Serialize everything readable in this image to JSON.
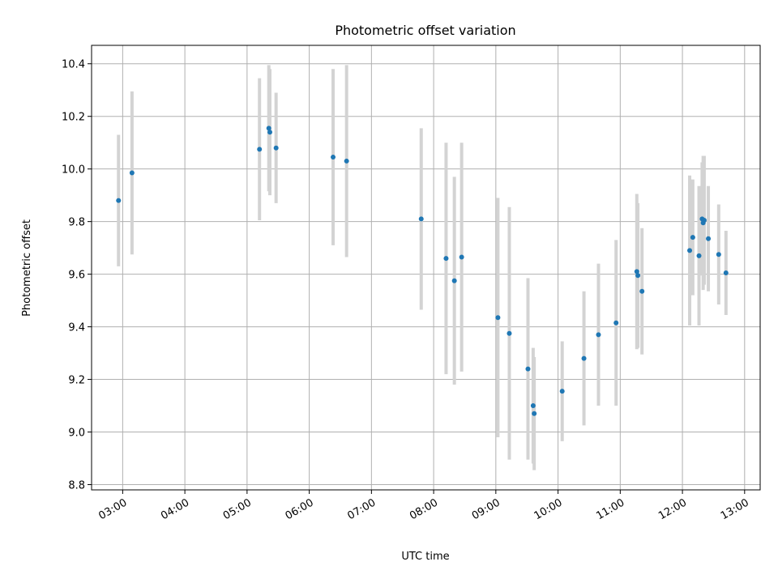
{
  "chart_data": {
    "type": "scatter",
    "title": "Photometric offset variation",
    "xlabel": "UTC time",
    "ylabel": "Photometric offset",
    "xlim": [
      "02:30",
      "13:15"
    ],
    "ylim": [
      8.78,
      10.47
    ],
    "x_ticks": [
      "03:00",
      "04:00",
      "05:00",
      "06:00",
      "07:00",
      "08:00",
      "09:00",
      "10:00",
      "11:00",
      "12:00",
      "13:00"
    ],
    "y_ticks": [
      8.8,
      9.0,
      9.2,
      9.4,
      9.6,
      9.8,
      10.0,
      10.2,
      10.4
    ],
    "grid": true,
    "marker_color": "#1f77b4",
    "errorbar_color": "#d3d3d3",
    "points": [
      {
        "x": "02:56",
        "y": 9.88,
        "yerr": 0.25
      },
      {
        "x": "03:09",
        "y": 9.985,
        "yerr": 0.31
      },
      {
        "x": "05:12",
        "y": 10.075,
        "yerr": 0.27
      },
      {
        "x": "05:21",
        "y": 10.155,
        "yerr": 0.24
      },
      {
        "x": "05:22",
        "y": 10.14,
        "yerr": 0.24
      },
      {
        "x": "05:28",
        "y": 10.08,
        "yerr": 0.21
      },
      {
        "x": "06:23",
        "y": 10.045,
        "yerr": 0.335
      },
      {
        "x": "06:36",
        "y": 10.03,
        "yerr": 0.365
      },
      {
        "x": "07:48",
        "y": 9.81,
        "yerr": 0.345
      },
      {
        "x": "08:12",
        "y": 9.66,
        "yerr": 0.44
      },
      {
        "x": "08:20",
        "y": 9.575,
        "yerr": 0.395
      },
      {
        "x": "08:27",
        "y": 9.665,
        "yerr": 0.435
      },
      {
        "x": "09:02",
        "y": 9.435,
        "yerr": 0.455
      },
      {
        "x": "09:13",
        "y": 9.375,
        "yerr": 0.48
      },
      {
        "x": "09:31",
        "y": 9.24,
        "yerr": 0.345
      },
      {
        "x": "09:36",
        "y": 9.1,
        "yerr": 0.22
      },
      {
        "x": "09:37",
        "y": 9.07,
        "yerr": 0.215
      },
      {
        "x": "10:04",
        "y": 9.155,
        "yerr": 0.19
      },
      {
        "x": "10:25",
        "y": 9.28,
        "yerr": 0.255
      },
      {
        "x": "10:39",
        "y": 9.37,
        "yerr": 0.27
      },
      {
        "x": "10:56",
        "y": 9.415,
        "yerr": 0.315
      },
      {
        "x": "11:16",
        "y": 9.61,
        "yerr": 0.295
      },
      {
        "x": "11:17",
        "y": 9.595,
        "yerr": 0.275
      },
      {
        "x": "11:21",
        "y": 9.535,
        "yerr": 0.24
      },
      {
        "x": "12:07",
        "y": 9.69,
        "yerr": 0.285
      },
      {
        "x": "12:10",
        "y": 9.74,
        "yerr": 0.22
      },
      {
        "x": "12:16",
        "y": 9.67,
        "yerr": 0.265
      },
      {
        "x": "12:19",
        "y": 9.81,
        "yerr": 0.215
      },
      {
        "x": "12:20",
        "y": 9.795,
        "yerr": 0.255
      },
      {
        "x": "12:21",
        "y": 9.805,
        "yerr": 0.245
      },
      {
        "x": "12:25",
        "y": 9.735,
        "yerr": 0.2
      },
      {
        "x": "12:35",
        "y": 9.675,
        "yerr": 0.19
      },
      {
        "x": "12:42",
        "y": 9.605,
        "yerr": 0.16
      }
    ]
  }
}
